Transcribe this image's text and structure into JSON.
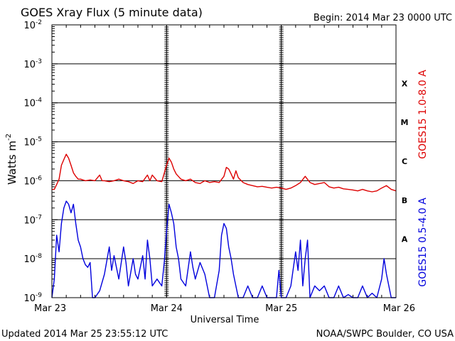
{
  "header": {
    "title": "GOES Xray Flux (5 minute data)",
    "begin": "Begin:  2014 Mar 23 0000 UTC"
  },
  "footer": {
    "updated": "Updated 2014 Mar 25 23:55:12 UTC",
    "credit": "NOAA/SWPC Boulder, CO USA"
  },
  "colors": {
    "long_channel": "#dd0000",
    "short_channel": "#0000dd",
    "axis": "#000000"
  },
  "chart_data": {
    "type": "line",
    "title": "GOES Xray Flux (5 minute data)",
    "xlabel": "Universal Time",
    "ylabel": "Watts m",
    "ylabel_superscript": "-2",
    "yscale": "log",
    "ylim": [
      1e-09,
      0.01
    ],
    "xlim": [
      0,
      72
    ],
    "x_unit": "hours since 2014 Mar 23 0000 UTC",
    "x_ticks": [
      {
        "x": 0,
        "label": "Mar 23"
      },
      {
        "x": 24,
        "label": "Mar 24"
      },
      {
        "x": 48,
        "label": "Mar 25"
      },
      {
        "x": 72,
        "label": "Mar 26"
      }
    ],
    "y_ticks": [
      {
        "exp": -9,
        "base": "10",
        "sup": "-9"
      },
      {
        "exp": -8,
        "base": "10",
        "sup": "-8"
      },
      {
        "exp": -7,
        "base": "10",
        "sup": "-7"
      },
      {
        "exp": -6,
        "base": "10",
        "sup": "-6"
      },
      {
        "exp": -5,
        "base": "10",
        "sup": "-5"
      },
      {
        "exp": -4,
        "base": "10",
        "sup": "-4"
      },
      {
        "exp": -3,
        "base": "10",
        "sup": "-3"
      },
      {
        "exp": -2,
        "base": "10",
        "sup": "-2"
      }
    ],
    "flare_classes": [
      {
        "label": "A",
        "exp": -8
      },
      {
        "label": "B",
        "exp": -7
      },
      {
        "label": "C",
        "exp": -6
      },
      {
        "label": "M",
        "exp": -5
      },
      {
        "label": "X",
        "exp": -4
      }
    ],
    "grid": true,
    "series": [
      {
        "name": "GOES15 1.0-8.0 A",
        "color": "#dd0000",
        "points": [
          [
            0,
            6e-07
          ],
          [
            0.5,
            6e-07
          ],
          [
            1,
            8e-07
          ],
          [
            1.5,
            1.1e-06
          ],
          [
            2,
            2.5e-06
          ],
          [
            2.5,
            3.5e-06
          ],
          [
            3,
            4.8e-06
          ],
          [
            3.5,
            3.8e-06
          ],
          [
            4,
            2.5e-06
          ],
          [
            4.5,
            1.6e-06
          ],
          [
            5,
            1.3e-06
          ],
          [
            5.5,
            1.1e-06
          ],
          [
            6,
            1.1e-06
          ],
          [
            7,
            1e-06
          ],
          [
            8,
            1.05e-06
          ],
          [
            9,
            1e-06
          ],
          [
            10,
            1.4e-06
          ],
          [
            10.5,
            1e-06
          ],
          [
            11,
            1e-06
          ],
          [
            12,
            9.5e-07
          ],
          [
            13,
            1e-06
          ],
          [
            14,
            1.1e-06
          ],
          [
            15,
            1e-06
          ],
          [
            16,
            9.5e-07
          ],
          [
            17,
            8.5e-07
          ],
          [
            18,
            1e-06
          ],
          [
            19,
            9.5e-07
          ],
          [
            20,
            1.4e-06
          ],
          [
            20.5,
            1e-06
          ],
          [
            21,
            1.4e-06
          ],
          [
            22,
            1e-06
          ],
          [
            23,
            9.5e-07
          ],
          [
            24,
            2.5e-06
          ],
          [
            24.5,
            3.8e-06
          ],
          [
            25,
            3e-06
          ],
          [
            25.5,
            2e-06
          ],
          [
            26,
            1.5e-06
          ],
          [
            27,
            1.1e-06
          ],
          [
            28,
            1e-06
          ],
          [
            29,
            1.1e-06
          ],
          [
            30,
            9e-07
          ],
          [
            31,
            8.5e-07
          ],
          [
            32,
            1e-06
          ],
          [
            33,
            9e-07
          ],
          [
            34,
            9.5e-07
          ],
          [
            35,
            9e-07
          ],
          [
            36,
            1.3e-06
          ],
          [
            36.5,
            2.2e-06
          ],
          [
            37,
            2e-06
          ],
          [
            37.5,
            1.5e-06
          ],
          [
            38,
            1.1e-06
          ],
          [
            38.5,
            1.8e-06
          ],
          [
            39,
            1.2e-06
          ],
          [
            40,
            9e-07
          ],
          [
            41,
            8e-07
          ],
          [
            42,
            7.5e-07
          ],
          [
            43,
            7e-07
          ],
          [
            44,
            7.2e-07
          ],
          [
            45,
            6.8e-07
          ],
          [
            46,
            6.5e-07
          ],
          [
            47,
            6.8e-07
          ],
          [
            48,
            6.5e-07
          ],
          [
            49,
            6e-07
          ],
          [
            50,
            6.5e-07
          ],
          [
            51,
            7.5e-07
          ],
          [
            52,
            9e-07
          ],
          [
            53,
            1.3e-06
          ],
          [
            54,
            9e-07
          ],
          [
            55,
            8e-07
          ],
          [
            56,
            8.5e-07
          ],
          [
            57,
            9e-07
          ],
          [
            58,
            7e-07
          ],
          [
            59,
            6.5e-07
          ],
          [
            60,
            6.8e-07
          ],
          [
            61,
            6.2e-07
          ],
          [
            62,
            6e-07
          ],
          [
            63,
            5.8e-07
          ],
          [
            64,
            5.5e-07
          ],
          [
            65,
            6e-07
          ],
          [
            66,
            5.5e-07
          ],
          [
            67,
            5.2e-07
          ],
          [
            68,
            5.5e-07
          ],
          [
            69,
            6.5e-07
          ],
          [
            70,
            7.5e-07
          ],
          [
            71,
            6e-07
          ],
          [
            72,
            5.5e-07
          ]
        ]
      },
      {
        "name": "GOES15 0.5-4.0 A",
        "color": "#0000dd",
        "points": [
          [
            0,
            1e-09
          ],
          [
            0.5,
            3e-09
          ],
          [
            1,
            4e-08
          ],
          [
            1.5,
            1.5e-08
          ],
          [
            2,
            8e-08
          ],
          [
            2.5,
            2e-07
          ],
          [
            3,
            3e-07
          ],
          [
            3.5,
            2.5e-07
          ],
          [
            4,
            1.5e-07
          ],
          [
            4.5,
            2.5e-07
          ],
          [
            5,
            8e-08
          ],
          [
            5.5,
            3e-08
          ],
          [
            6,
            2e-08
          ],
          [
            6.5,
            1e-08
          ],
          [
            7,
            7e-09
          ],
          [
            7.5,
            6e-09
          ],
          [
            8,
            8e-09
          ],
          [
            8.5,
            1e-09
          ],
          [
            9,
            1e-09
          ],
          [
            10,
            1.5e-09
          ],
          [
            11,
            4e-09
          ],
          [
            12,
            2e-08
          ],
          [
            12.5,
            5e-09
          ],
          [
            13,
            1.2e-08
          ],
          [
            14,
            3e-09
          ],
          [
            15,
            2e-08
          ],
          [
            15.5,
            8e-09
          ],
          [
            16,
            2e-09
          ],
          [
            17,
            1e-08
          ],
          [
            17.5,
            4e-09
          ],
          [
            18,
            3e-09
          ],
          [
            19,
            1.2e-08
          ],
          [
            19.5,
            3e-09
          ],
          [
            20,
            3e-08
          ],
          [
            20.5,
            1e-08
          ],
          [
            21,
            2e-09
          ],
          [
            22,
            3e-09
          ],
          [
            23,
            2e-09
          ],
          [
            23.5,
            8e-09
          ],
          [
            24,
            5e-08
          ],
          [
            24.5,
            2.5e-07
          ],
          [
            25,
            1.5e-07
          ],
          [
            25.5,
            8e-08
          ],
          [
            26,
            2e-08
          ],
          [
            26.5,
            1e-08
          ],
          [
            27,
            3e-09
          ],
          [
            28,
            2e-09
          ],
          [
            29,
            1.5e-08
          ],
          [
            29.5,
            6e-09
          ],
          [
            30,
            3e-09
          ],
          [
            31,
            8e-09
          ],
          [
            32,
            4e-09
          ],
          [
            33,
            1e-09
          ],
          [
            34,
            1e-09
          ],
          [
            35,
            5e-09
          ],
          [
            35.5,
            4e-08
          ],
          [
            36,
            8e-08
          ],
          [
            36.5,
            6e-08
          ],
          [
            37,
            2e-08
          ],
          [
            37.5,
            1e-08
          ],
          [
            38,
            4e-09
          ],
          [
            38.5,
            2e-09
          ],
          [
            39,
            1e-09
          ],
          [
            40,
            1e-09
          ],
          [
            41,
            2e-09
          ],
          [
            42,
            1e-09
          ],
          [
            43,
            1e-09
          ],
          [
            44,
            2e-09
          ],
          [
            45,
            1e-09
          ],
          [
            46,
            1e-09
          ],
          [
            47,
            1e-09
          ],
          [
            47.5,
            5e-09
          ],
          [
            48,
            1e-09
          ],
          [
            49,
            1e-09
          ],
          [
            50,
            2e-09
          ],
          [
            51,
            1.5e-08
          ],
          [
            51.5,
            5e-09
          ],
          [
            52,
            3e-08
          ],
          [
            52.5,
            2e-09
          ],
          [
            53,
            1e-08
          ],
          [
            53.5,
            3e-08
          ],
          [
            54,
            1e-09
          ],
          [
            55,
            2e-09
          ],
          [
            56,
            1.5e-09
          ],
          [
            57,
            2e-09
          ],
          [
            58,
            1e-09
          ],
          [
            59,
            1e-09
          ],
          [
            60,
            2e-09
          ],
          [
            61,
            1e-09
          ],
          [
            62,
            1.2e-09
          ],
          [
            63,
            1e-09
          ],
          [
            64,
            1e-09
          ],
          [
            65,
            2e-09
          ],
          [
            66,
            1e-09
          ],
          [
            67,
            1.3e-09
          ],
          [
            68,
            1e-09
          ],
          [
            69,
            3e-09
          ],
          [
            69.5,
            1e-08
          ],
          [
            70,
            4e-09
          ],
          [
            71,
            1e-09
          ],
          [
            72,
            1e-09
          ]
        ]
      }
    ]
  }
}
